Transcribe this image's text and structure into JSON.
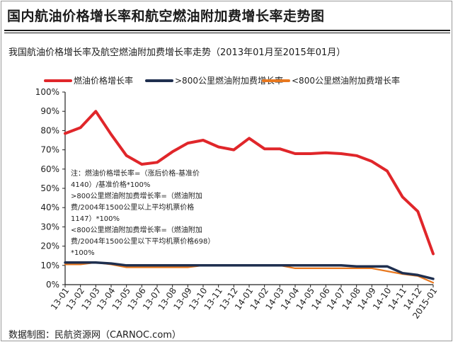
{
  "header": {
    "title": "国内航油价格增长率和航空燃油附加费增长率走势图",
    "subtitle": "我国航油价格增长率及航空燃油附加费增长率走势（2013年01月至2015年01月）"
  },
  "footer": {
    "source": "数据制图：民航资源网（CARNOC.com）"
  },
  "colors": {
    "fuel_price": "#e0262a",
    "over800": "#1f2f4f",
    "under800": "#e8781f"
  },
  "chart_data": {
    "type": "line",
    "categories": [
      "13-01",
      "13-02",
      "13-03",
      "13-04",
      "13-05",
      "13-06",
      "13-07",
      "13-08",
      "13-09",
      "13-10",
      "13-11",
      "13-12",
      "14-01",
      "14-02",
      "14-03",
      "14-04",
      "14-05",
      "14-06",
      "14-07",
      "14-08",
      "14-09",
      "14-10",
      "14-11",
      "14-12",
      "2015-01"
    ],
    "x": [
      0,
      1,
      2,
      3,
      4,
      5,
      6,
      7,
      8,
      9,
      10,
      11,
      12,
      13,
      14,
      15,
      16,
      17,
      18,
      19,
      20,
      21,
      22,
      23,
      24
    ],
    "ylim": [
      0,
      100
    ],
    "yticks": [
      "0%",
      "10%",
      "20%",
      "30%",
      "40%",
      "50%",
      "60%",
      "70%",
      "80%",
      "90%",
      "100%"
    ],
    "series": [
      {
        "name": "燃油价格增长率",
        "values": [
          78.5,
          81.5,
          90,
          78,
          67,
          62.5,
          63.5,
          69,
          73.5,
          75,
          71.5,
          70,
          76,
          70.5,
          70.5,
          68,
          68,
          68.5,
          68,
          67,
          64,
          59,
          45.5,
          38,
          16
        ]
      },
      {
        "name": ">800公里燃油附加费增长率",
        "values": [
          11.5,
          11.5,
          11.5,
          11,
          10,
          10,
          10,
          10,
          10,
          10,
          10,
          10,
          10,
          10,
          10,
          10,
          10,
          10,
          10,
          9.5,
          9.5,
          9.5,
          6,
          5,
          3
        ]
      },
      {
        "name": "<800公里燃油附加费增长率",
        "values": [
          10.5,
          10.5,
          11.5,
          10.5,
          9,
          9,
          9,
          9,
          9,
          10,
          10,
          10,
          10,
          10,
          10,
          8.5,
          8.5,
          8.5,
          8.5,
          8.5,
          8.5,
          7,
          5.5,
          4.5,
          1
        ]
      }
    ],
    "annotation": [
      "注：燃油价格增长率=（涨后价格-基准价",
      "4140）/基准价格*100%",
      ">800公里燃油附加费增长率=（燃油附加",
      "费/2004年1500公里以上平均机票价格",
      "1147）*100%",
      "<800公里燃油附加费增长率=（燃油附加",
      "费/2004年1500公里以下平均机票价格698）",
      "*100%"
    ],
    "grid": false,
    "legend_position": "top"
  }
}
